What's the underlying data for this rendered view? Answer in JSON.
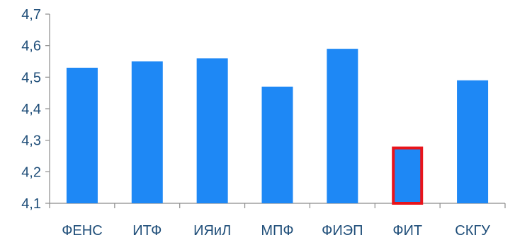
{
  "chart_data": {
    "type": "bar",
    "categories": [
      "ФЕНС",
      "ИТФ",
      "ИЯиЛ",
      "МПФ",
      "ФИЭП",
      "ФИТ",
      "СКГУ"
    ],
    "values": [
      4.53,
      4.55,
      4.56,
      4.47,
      4.59,
      4.28,
      4.49
    ],
    "ylim": [
      4.1,
      4.7
    ],
    "yticks": [
      "4,1",
      "4,2",
      "4,3",
      "4,4",
      "4,5",
      "4,6",
      "4,7"
    ],
    "grid": false,
    "legend": "none",
    "highlight_category": "ФИТ",
    "colors": {
      "bar": "#1e88f5",
      "highlight_border": "#e8141b",
      "axis": "#8c8c8c",
      "text": "#1f4e79"
    }
  }
}
